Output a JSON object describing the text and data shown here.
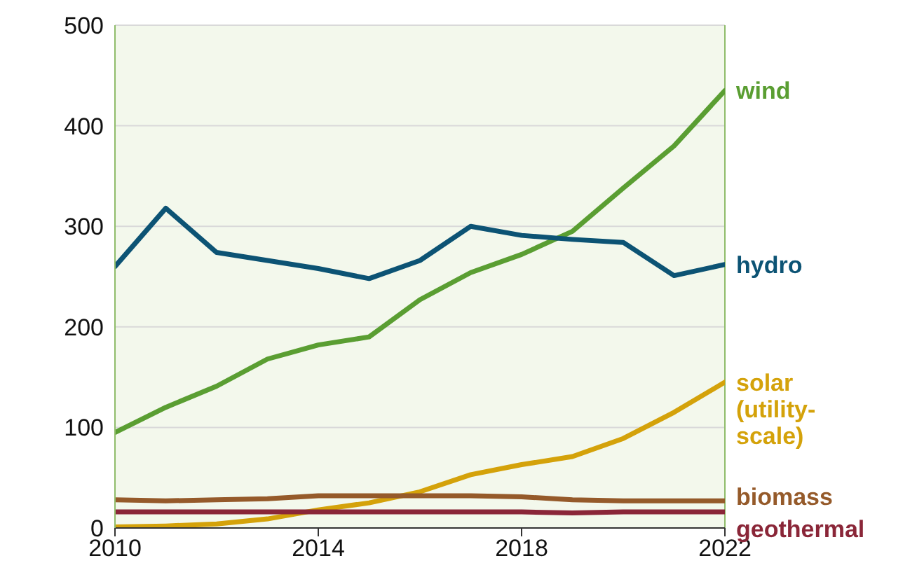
{
  "chart_data": {
    "type": "line",
    "x": [
      2010,
      2011,
      2012,
      2013,
      2014,
      2015,
      2016,
      2017,
      2018,
      2019,
      2020,
      2021,
      2022
    ],
    "xlim": [
      2010,
      2022
    ],
    "xticks": [
      2010,
      2014,
      2018,
      2022
    ],
    "ylim": [
      0,
      500
    ],
    "yticks": [
      0,
      100,
      200,
      300,
      400,
      500
    ],
    "grid": "y",
    "marker": "none",
    "line_style": "solid",
    "series": [
      {
        "name": "wind",
        "color": "#5a9e32",
        "values": [
          95,
          120,
          141,
          168,
          182,
          190,
          227,
          254,
          272,
          295,
          338,
          380,
          435
        ]
      },
      {
        "name": "hydro",
        "color": "#0c5374",
        "values": [
          260,
          318,
          274,
          266,
          258,
          248,
          266,
          300,
          291,
          287,
          284,
          251,
          262
        ]
      },
      {
        "name": "solar (utility-scale)",
        "color": "#d4a20a",
        "values": [
          1,
          2,
          4,
          9,
          18,
          25,
          36,
          53,
          63,
          71,
          89,
          115,
          145
        ]
      },
      {
        "name": "biomass",
        "color": "#955a2a",
        "values": [
          28,
          27,
          28,
          29,
          32,
          32,
          32,
          32,
          31,
          28,
          27,
          27,
          27
        ]
      },
      {
        "name": "geothermal",
        "color": "#8a2638",
        "values": [
          16,
          16,
          16,
          16,
          16,
          16,
          16,
          16,
          16,
          15,
          16,
          16,
          16
        ]
      }
    ]
  }
}
